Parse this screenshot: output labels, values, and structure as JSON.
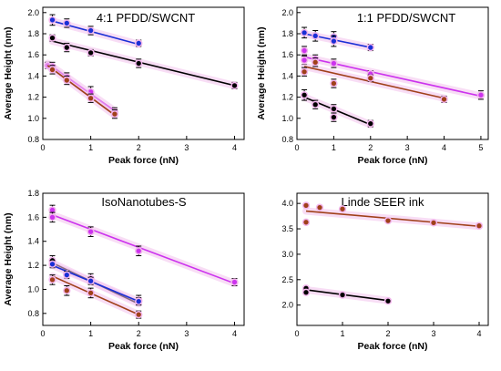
{
  "chart_data": [
    {
      "type": "scatter",
      "title": "4:1 PFDD/SWCNT",
      "xlabel": "Peak force (nN)",
      "ylabel": "Average Height (nm)",
      "xlim": [
        0,
        4.2
      ],
      "ylim": [
        0.8,
        2.05
      ],
      "xticks": [
        0,
        1,
        2,
        3,
        4
      ],
      "yticks": [
        0.8,
        1.0,
        1.2,
        1.4,
        1.6,
        1.8,
        2.0
      ],
      "grid": false,
      "series": [
        {
          "color": "#1a2fd6",
          "x": [
            0.2,
            0.5,
            1,
            2
          ],
          "y": [
            1.93,
            1.9,
            1.83,
            1.71
          ],
          "err": [
            0.05,
            0.04,
            0.04,
            0.03
          ],
          "fit": [
            [
              0.2,
              1.92
            ],
            [
              2,
              1.7
            ]
          ]
        },
        {
          "color": "#000000",
          "x": [
            0.2,
            0.5,
            1,
            2,
            4
          ],
          "y": [
            1.76,
            1.67,
            1.62,
            1.52,
            1.31
          ],
          "err": [
            0.03,
            0.04,
            0.03,
            0.04,
            0.03
          ],
          "fit": [
            [
              0.2,
              1.73
            ],
            [
              4,
              1.31
            ]
          ]
        },
        {
          "color": "#cc33ee",
          "x": [
            0.1,
            0.2,
            0.5,
            1,
            1.5
          ],
          "y": [
            1.5,
            1.49,
            1.39,
            1.25,
            1.06
          ],
          "err": [
            0.03,
            0.04,
            0.04,
            0.05,
            0.04
          ],
          "fit": [
            [
              0.1,
              1.52
            ],
            [
              1.5,
              1.07
            ]
          ]
        },
        {
          "color": "#a0401a",
          "x": [
            0.2,
            0.5,
            1,
            1.5
          ],
          "y": [
            1.46,
            1.36,
            1.19,
            1.04
          ],
          "err": [
            0.04,
            0.04,
            0.04,
            0.04
          ],
          "fit": [
            [
              0.1,
              1.5
            ],
            [
              1.5,
              1.03
            ]
          ]
        }
      ]
    },
    {
      "type": "scatter",
      "title": "1:1 PFDD/SWCNT",
      "xlabel": "Peak force (nN)",
      "ylabel": "Average Height (nm)",
      "xlim": [
        0,
        5.2
      ],
      "ylim": [
        0.8,
        2.05
      ],
      "xticks": [
        0,
        1,
        2,
        3,
        4,
        5
      ],
      "yticks": [
        0.8,
        1.0,
        1.2,
        1.4,
        1.6,
        1.8,
        2.0
      ],
      "grid": false,
      "series": [
        {
          "color": "#1a2fd6",
          "x": [
            0.2,
            0.5,
            1,
            1,
            2
          ],
          "y": [
            1.81,
            1.78,
            1.77,
            1.73,
            1.67
          ],
          "err": [
            0.05,
            0.05,
            0.05,
            0.05,
            0.03
          ],
          "fit": [
            [
              0.2,
              1.8
            ],
            [
              2,
              1.67
            ]
          ]
        },
        {
          "color": "#cc33ee",
          "x": [
            0.2,
            0.2,
            0.5,
            1,
            2,
            5
          ],
          "y": [
            1.64,
            1.55,
            1.56,
            1.52,
            1.42,
            1.22
          ],
          "err": [
            0.04,
            0.04,
            0.04,
            0.04,
            0.03,
            0.04
          ],
          "fit": [
            [
              0.2,
              1.58
            ],
            [
              5,
              1.21
            ]
          ]
        },
        {
          "color": "#a0401a",
          "x": [
            0.2,
            0.5,
            1,
            2,
            4
          ],
          "y": [
            1.44,
            1.53,
            1.33,
            1.38,
            1.18
          ],
          "err": [
            0.04,
            0.04,
            0.04,
            0.03,
            0.03
          ],
          "fit": [
            [
              0.2,
              1.49
            ],
            [
              4,
              1.19
            ]
          ]
        },
        {
          "color": "#000000",
          "x": [
            0.2,
            0.5,
            1,
            1,
            2
          ],
          "y": [
            1.22,
            1.13,
            1.09,
            1.01,
            0.95
          ],
          "err": [
            0.05,
            0.04,
            0.04,
            0.04,
            0.03
          ],
          "fit": [
            [
              0.2,
              1.2
            ],
            [
              2,
              0.94
            ]
          ]
        }
      ]
    },
    {
      "type": "scatter",
      "title": "IsoNanotubes-S",
      "xlabel": "Peak force (nN)",
      "ylabel": "Average Height (nm)",
      "xlim": [
        0,
        4.2
      ],
      "ylim": [
        0.7,
        1.8
      ],
      "xticks": [
        0,
        1,
        2,
        3,
        4
      ],
      "yticks": [
        0.8,
        1.0,
        1.2,
        1.4,
        1.6,
        1.8
      ],
      "grid": false,
      "series": [
        {
          "color": "#cc33ee",
          "x": [
            0.2,
            0.2,
            1,
            2,
            4
          ],
          "y": [
            1.66,
            1.6,
            1.48,
            1.32,
            1.06
          ],
          "err": [
            0.04,
            0.04,
            0.04,
            0.04,
            0.03
          ],
          "fit": [
            [
              0.2,
              1.62
            ],
            [
              4,
              1.05
            ]
          ]
        },
        {
          "color": "#000000",
          "x": [
            0.2,
            0.5,
            1,
            2
          ],
          "y": [
            1.24,
            1.13,
            1.09,
            0.91
          ],
          "err": [
            0.04,
            0.03,
            0.04,
            0.04
          ],
          "fit": [
            [
              0.2,
              1.22
            ],
            [
              2,
              0.88
            ]
          ]
        },
        {
          "color": "#1a2fd6",
          "x": [
            0.2,
            0.5,
            1,
            2
          ],
          "y": [
            1.21,
            1.12,
            1.07,
            0.9
          ],
          "err": [
            0.03,
            0.03,
            0.03,
            0.03
          ],
          "fit": [
            [
              0.2,
              1.2
            ],
            [
              2,
              0.9
            ]
          ]
        },
        {
          "color": "#a0401a",
          "x": [
            0.2,
            0.5,
            1,
            2
          ],
          "y": [
            1.08,
            0.99,
            0.97,
            0.79
          ],
          "err": [
            0.04,
            0.04,
            0.04,
            0.03
          ],
          "fit": [
            [
              0.2,
              1.11
            ],
            [
              2,
              0.79
            ]
          ]
        }
      ]
    },
    {
      "type": "scatter",
      "title": "Linde SEER ink",
      "xlabel": "Peak force (nN)",
      "ylabel": "",
      "xlim": [
        0,
        4.2
      ],
      "ylim": [
        1.6,
        4.2
      ],
      "xticks": [
        0,
        1,
        2,
        3,
        4
      ],
      "yticks": [
        2.0,
        2.5,
        3.0,
        3.5,
        4.0
      ],
      "grid": false,
      "series": [
        {
          "color": "#a0401a",
          "x": [
            0.2,
            0.2,
            0.5,
            1,
            2,
            3,
            4
          ],
          "y": [
            3.96,
            3.63,
            3.92,
            3.89,
            3.66,
            3.62,
            3.56
          ],
          "err": [
            0.03,
            0.03,
            0.03,
            0.03,
            0.03,
            0.03,
            0.03
          ],
          "fit": [
            [
              0.2,
              3.85
            ],
            [
              4,
              3.55
            ]
          ]
        },
        {
          "color": "#000000",
          "x": [
            0.2,
            0.2,
            1,
            2
          ],
          "y": [
            2.33,
            2.25,
            2.2,
            2.08
          ],
          "err": [
            0.03,
            0.03,
            0.03,
            0.02
          ],
          "fit": [
            [
              0.2,
              2.3
            ],
            [
              2,
              2.09
            ]
          ]
        }
      ]
    }
  ]
}
